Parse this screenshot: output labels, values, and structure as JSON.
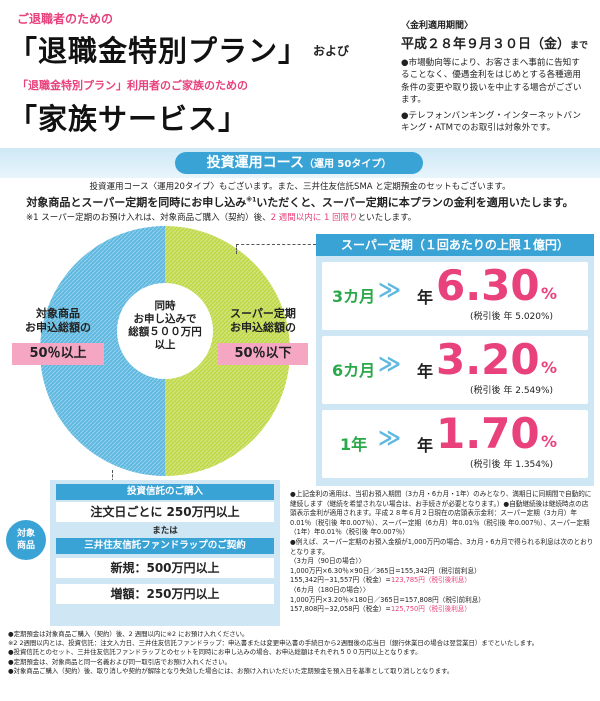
{
  "header": {
    "lead1": "ご退職者のための",
    "title1": "「退職金特別プラン」",
    "and": "および",
    "lead2": "「退職金特別プラン」利用者のご家族のための",
    "title2": "「家族サービス」",
    "period_label": "〈金利適用期間〉",
    "period_value": "平成２８年９月３０日（金）",
    "period_suffix": "まで",
    "note1": "●市場動向等により、お客さまへ事前に告知することなく、優遇金利をはじめとする各種適用条件の変更や取り扱いを中止する場合がございます。",
    "note2": "●テレフォンバンキング・インターネットバンキング・ATMでのお取引は対象外です。"
  },
  "course": {
    "title": "投資運用コース",
    "subtitle": "（運用 50タイプ）",
    "line1": "投資運用コース〈運用20タイプ〉もございます。また、三井住友信託SMA と定期預金のセットもございます。",
    "line2": "対象商品とスーパー定期を同時にお申し込み",
    "line2_sup": "※1",
    "line2_b": "いただくと、スーパー定期に本プランの金利を適用いたします。",
    "line3": "※1 スーパー定期のお預け入れは、対象商品ご購入（契約）後、",
    "line3_pink": "2 週間以内に 1 回限り",
    "line3_b": "といたします。"
  },
  "pie": {
    "center": [
      "同時",
      "お申し込みで",
      "総額５００万円",
      "以上"
    ],
    "left_label": [
      "対象商品",
      "お申込総額の"
    ],
    "left_value": "50％以上",
    "right_label": [
      "スーパー定期",
      "お申込総額の"
    ],
    "right_value": "50％以下",
    "colors": {
      "left": "#5eb8e0",
      "right": "#c0d94a"
    }
  },
  "rates": {
    "title": "スーパー定期（１回あたりの上限１億円）",
    "rows": [
      {
        "term": "3カ月",
        "year": "年",
        "value": "6.30",
        "unit": "%",
        "after": "(税引後 年 5.020%)"
      },
      {
        "term": "6カ月",
        "year": "年",
        "value": "3.20",
        "unit": "%",
        "after": "(税引後 年 2.549%)"
      },
      {
        "term": "1年",
        "year": "年",
        "value": "1.70",
        "unit": "%",
        "after": "(税引後 年 1.354%)"
      }
    ],
    "arrow": "≫"
  },
  "products": {
    "tag": [
      "対象",
      "商品"
    ],
    "trust_title": "投資信託のご購入",
    "trust_value": "注文日ごとに 250万円以上",
    "or": "または",
    "wrap_title": "三井住友信託ファンドラップのご契約",
    "wrap_new": "新規：500万円以上",
    "wrap_add": "増額：250万円以上"
  },
  "example": {
    "p1": "●上記金利の適用は、当初お預入期間（3カ月・6カ月・1年）のみとなり、満期日に同期間で自動的に継続します（継続を希望されない場合は、お手続きが必要となります。）●自動継続後は継続時点の店頭表示金利が適用されます。平成２８年６月２日現在の店頭表示金利：スーパー定期（3カ月）年0.01％（税引後 年0.007％）、スーパー定期（6カ月）年0.01％（税引後 年0.007％）、スーパー定期（1年）年0.01％（税引後 年0.007％）",
    "p2": "●例えば、スーパー定期のお預入金額が1,000万円の場合、3カ月・6カ月で得られる利息は次のとおりとなります。",
    "c3": "〈3カ月（90日の場合）〉",
    "c3a": "1,000万円×6.30％×90日／365日=155,342円（税引前利息）",
    "c3b": "155,342円−31,557円（税金）=",
    "c3b_pink": "123,785円（税引後利息）",
    "c6": "〈6カ月（180日の場合）〉",
    "c6a": "1,000万円×3.20％×180日／365日=157,808円（税引前利息）",
    "c6b": "157,808円−32,058円（税金）=",
    "c6b_pink": "125,750円（税引後利息）"
  },
  "footnotes": [
    "●定期預金は対象商品ご購入（契約）後、2 週間以内に※2 にお預け入れください。",
    "※2 2週間以内とは、投資信託：注文入力日、三井住友信託ファンドラップ：申込書または変更申込書の手続日から2週間後の応当日（銀行休業日の場合は翌営業日）までといたします。",
    "●投資信託とのセット、三井住友信託ファンドラップとのセットを同時にお申し込みの場合、お申込総額はそれぞれ５００万円以上となります。",
    "●定期預金は、対象商品と同一名義および同一取引店でお預け入れください。",
    "●対象商品ご購入（契約）後、取り消しや契約が解除となり失効した場合には、お預け入れいただいた定期預金を預入日を基準として取り消しとなります。"
  ]
}
